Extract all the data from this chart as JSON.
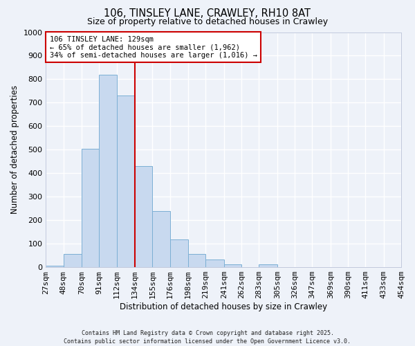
{
  "title": "106, TINSLEY LANE, CRAWLEY, RH10 8AT",
  "subtitle": "Size of property relative to detached houses in Crawley",
  "xlabel": "Distribution of detached houses by size in Crawley",
  "ylabel": "Number of detached properties",
  "bar_color": "#c8d9ef",
  "bar_edge_color": "#7bafd4",
  "background_color": "#eef2f9",
  "grid_color": "#ffffff",
  "annotation_box_color": "#ffffff",
  "annotation_box_edge": "#cc0000",
  "vline_color": "#cc0000",
  "vline_x": 134,
  "bins": [
    27,
    48,
    70,
    91,
    112,
    134,
    155,
    176,
    198,
    219,
    241,
    262,
    283,
    305,
    326,
    347,
    369,
    390,
    411,
    433,
    454
  ],
  "bin_labels": [
    "27sqm",
    "48sqm",
    "70sqm",
    "91sqm",
    "112sqm",
    "134sqm",
    "155sqm",
    "176sqm",
    "198sqm",
    "219sqm",
    "241sqm",
    "262sqm",
    "283sqm",
    "305sqm",
    "326sqm",
    "347sqm",
    "369sqm",
    "390sqm",
    "411sqm",
    "433sqm",
    "454sqm"
  ],
  "counts": [
    5,
    55,
    505,
    820,
    730,
    430,
    240,
    118,
    55,
    33,
    12,
    0,
    13,
    0,
    0,
    0,
    0,
    0,
    0,
    0
  ],
  "ylim": [
    0,
    1000
  ],
  "yticks": [
    0,
    100,
    200,
    300,
    400,
    500,
    600,
    700,
    800,
    900,
    1000
  ],
  "ann_line1": "106 TINSLEY LANE: 129sqm",
  "ann_line2": "← 65% of detached houses are smaller (1,962)",
  "ann_line3": "34% of semi-detached houses are larger (1,016) →",
  "footer1": "Contains HM Land Registry data © Crown copyright and database right 2025.",
  "footer2": "Contains public sector information licensed under the Open Government Licence v3.0."
}
